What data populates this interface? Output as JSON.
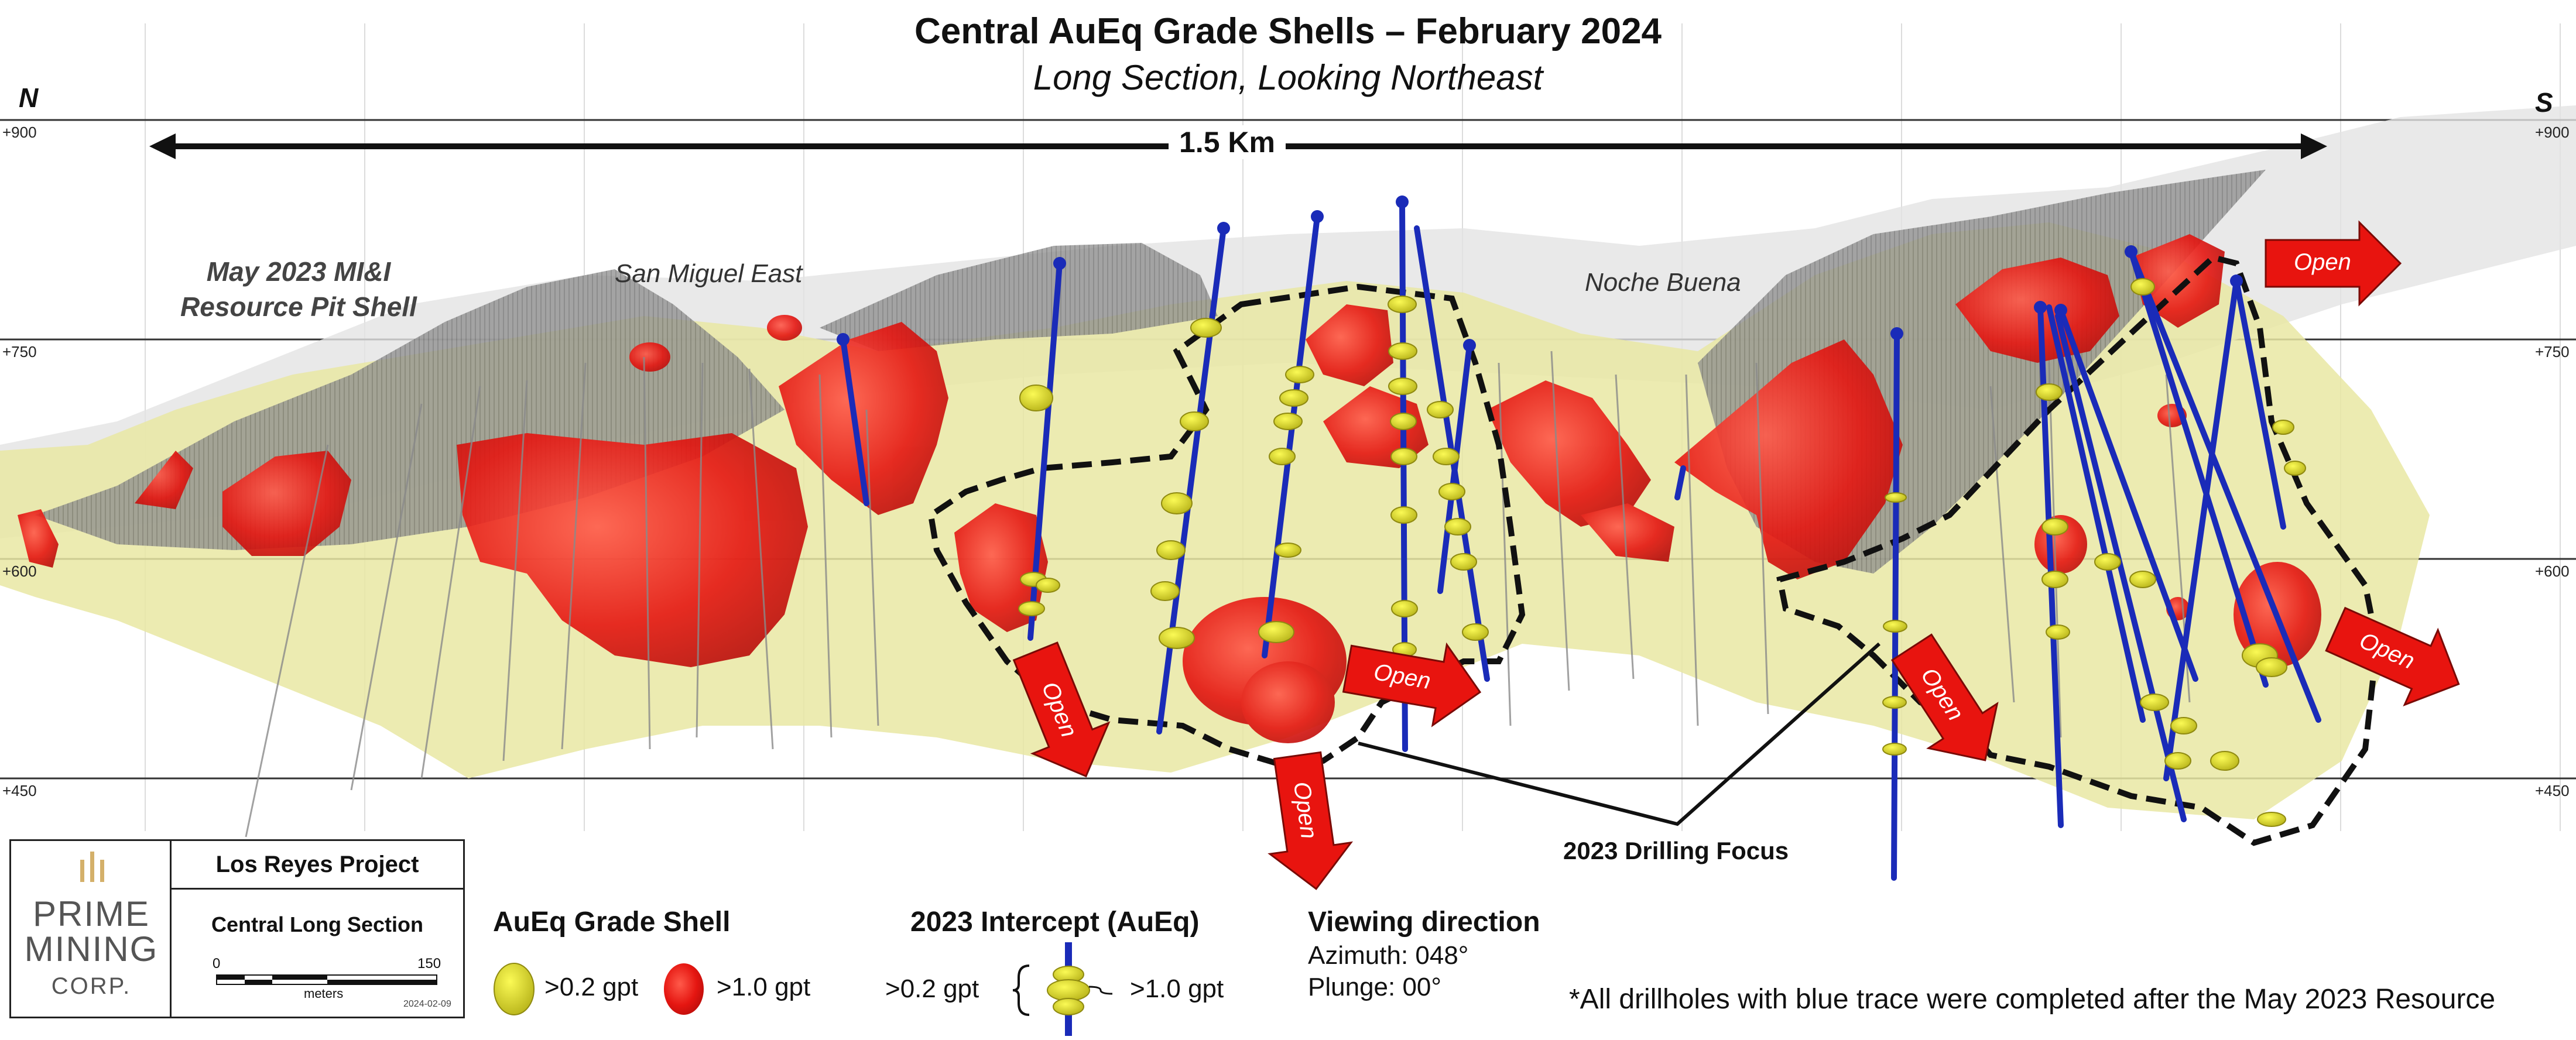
{
  "header": {
    "title": "Central AuEq Grade Shells – February 2024",
    "subtitle": "Long Section, Looking Northeast"
  },
  "compass": {
    "north": "N",
    "south": "S"
  },
  "elevations": {
    "e900": "+900",
    "e750": "+750",
    "e600": "+600",
    "e450": "+450"
  },
  "scale_bar": {
    "label": "1.5 Km"
  },
  "areas": {
    "pit_shell_line1": "May 2023 MI&I",
    "pit_shell_line2": "Resource Pit Shell",
    "san_miguel_east": "San Miguel East",
    "noche_buena": "Noche Buena"
  },
  "open_label": "Open",
  "drilling_focus": "2023 Drilling Focus",
  "logo_box": {
    "project": "Los Reyes Project",
    "section": "Central Long Section",
    "scale_min": "0",
    "scale_max": "150",
    "scale_unit": "meters",
    "date": "2024-02-09",
    "company_line1": "PRIME",
    "company_line2": "MINING",
    "company_line3": "CORP."
  },
  "legend": {
    "grade_shell_title": "AuEq Grade Shell",
    "low_grade": ">0.2 gpt",
    "high_grade": ">1.0 gpt",
    "intercept_title": "2023 Intercept (AuEq)",
    "intercept_low": ">0.2 gpt",
    "intercept_high": ">1.0 gpt",
    "view_title": "Viewing direction",
    "azimuth": "Azimuth: 048°",
    "plunge": "Plunge: 00°"
  },
  "footnote": "*All drillholes with blue trace were completed after the May 2023 Resource",
  "colors": {
    "low_grade_shell": "#e6e49a",
    "high_grade_shell": "#e8140f",
    "drill_trace": "#1a2bb8",
    "intercept": "#f2e61c",
    "open_arrow": "#e8140f",
    "pit_shell": "#8c8c8c"
  }
}
